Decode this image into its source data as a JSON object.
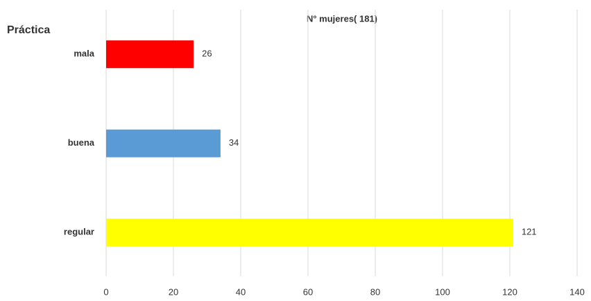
{
  "chart_data": {
    "type": "hbar",
    "title": "N° mujeres( 181)",
    "y_label": "Práctica",
    "categories": [
      "mala",
      "buena",
      "regular"
    ],
    "values": [
      26,
      34,
      121
    ],
    "colors": [
      "#ff0000",
      "#5b9bd5",
      "#ffff00"
    ],
    "xlim": [
      0,
      140
    ],
    "xticks": [
      0,
      20,
      40,
      60,
      80,
      100,
      120,
      140
    ],
    "grid": true
  }
}
